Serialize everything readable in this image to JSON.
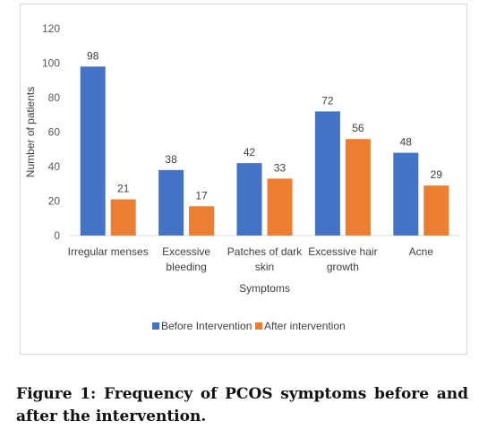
{
  "chart_data": {
    "type": "bar",
    "categories": [
      [
        "Irregular menses"
      ],
      [
        "Excessive",
        "bleeding"
      ],
      [
        "Patches of dark",
        "skin"
      ],
      [
        "Excessive hair",
        "growth"
      ],
      [
        "Acne"
      ]
    ],
    "series": [
      {
        "name": "Before Intervention",
        "values": [
          98,
          38,
          42,
          72,
          48
        ],
        "color": "#4472c4"
      },
      {
        "name": "After intervention",
        "values": [
          21,
          17,
          33,
          56,
          29
        ],
        "color": "#ed7d31"
      }
    ],
    "xlabel": "Symptoms",
    "ylabel": "Number of patients",
    "ylim": [
      0,
      120
    ],
    "yticks": [
      0,
      20,
      40,
      60,
      80,
      100,
      120
    ],
    "grid": false,
    "legend_position": "bottom"
  },
  "caption": "Figure 1: Frequency of PCOS symptoms before and after the intervention."
}
